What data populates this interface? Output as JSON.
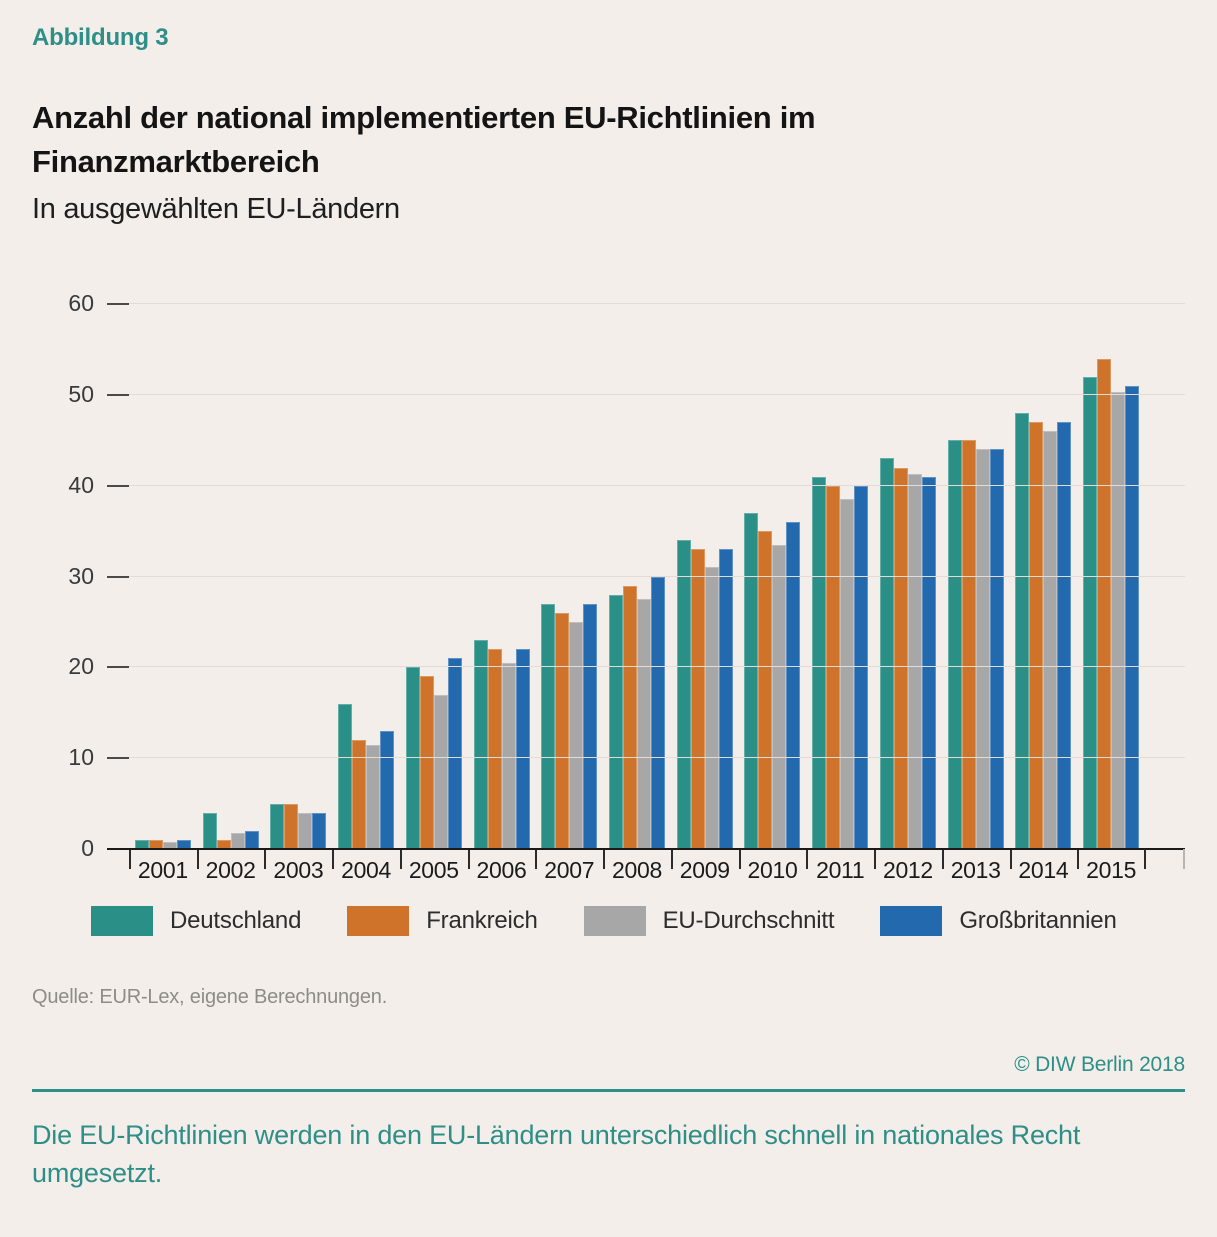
{
  "figure_label": "Abbildung 3",
  "title_lines": [
    "Anzahl der national implementierten EU-Richtlinien im",
    "Finanzmarktbereich"
  ],
  "subtitle": "In ausgewählten EU-Ländern",
  "source": "Quelle: EUR-Lex, eigene Berechnungen.",
  "copyright": "© DIW Berlin 2018",
  "takeaway": "Die EU-Richtlinien werden in den EU-Ländern unterschiedlich schnell in nationales Recht umgesetzt.",
  "colors": {
    "background": "#f3eee9",
    "accent_teal": "#2e8e88",
    "gridline": "#e1dcd7",
    "axis": "#1a1a1a"
  },
  "chart_data": {
    "type": "bar",
    "title": "Anzahl der national implementierten EU-Richtlinien im Finanzmarktbereich",
    "subtitle": "In ausgewählten EU-Ländern",
    "categories": [
      "2001",
      "2002",
      "2003",
      "2004",
      "2005",
      "2006",
      "2007",
      "2008",
      "2009",
      "2010",
      "2011",
      "2012",
      "2013",
      "2014",
      "2015"
    ],
    "series": [
      {
        "name": "Deutschland",
        "color": "#2a9087",
        "values": [
          1,
          4,
          5,
          16,
          20,
          23,
          27,
          28,
          34,
          37,
          41,
          43,
          45,
          48,
          52
        ]
      },
      {
        "name": "Frankreich",
        "color": "#ce7329",
        "values": [
          1,
          1,
          5,
          12,
          19,
          22,
          26,
          29,
          33,
          35,
          40,
          42,
          45,
          47,
          54
        ]
      },
      {
        "name": "EU-Durchschnitt",
        "color": "#a8a7a7",
        "values": [
          0.8,
          1.8,
          4,
          11.5,
          17,
          20.5,
          25,
          27.5,
          31,
          33.5,
          38.5,
          41.3,
          44,
          46,
          50.3
        ]
      },
      {
        "name": "Großbritannien",
        "color": "#2369ae",
        "values": [
          1,
          2,
          4,
          13,
          21,
          22,
          27,
          30,
          33,
          36,
          40,
          41,
          44,
          47,
          51
        ]
      }
    ],
    "xlabel": "",
    "ylabel": "",
    "ylim": [
      0,
      60
    ],
    "yticks": [
      0,
      10,
      20,
      30,
      40,
      50,
      60
    ],
    "grid": true,
    "legend_position": "bottom"
  }
}
